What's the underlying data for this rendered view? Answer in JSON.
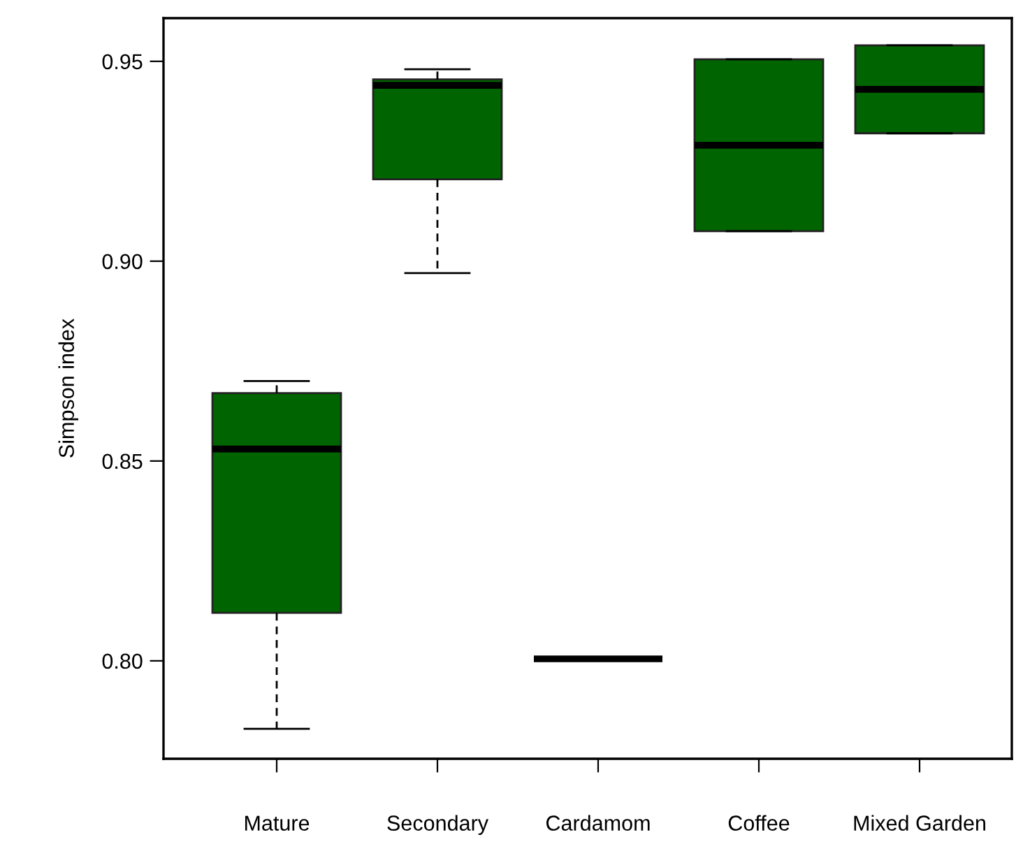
{
  "chart_data": {
    "type": "box",
    "ylabel": "Simpson index",
    "categories": [
      "Mature",
      "Secondary",
      "Cardamom",
      "Coffee",
      "Mixed Garden"
    ],
    "color": "#006400",
    "boxes": [
      {
        "low": 0.783,
        "q1": 0.812,
        "median": 0.853,
        "q3": 0.867,
        "high": 0.87
      },
      {
        "low": 0.897,
        "q1": 0.9205,
        "median": 0.944,
        "q3": 0.9455,
        "high": 0.948
      },
      {
        "low": 0.8005,
        "q1": 0.8005,
        "median": 0.8005,
        "q3": 0.8005,
        "high": 0.8005
      },
      {
        "low": 0.9075,
        "q1": 0.9075,
        "median": 0.929,
        "q3": 0.9505,
        "high": 0.9505
      },
      {
        "low": 0.932,
        "q1": 0.932,
        "median": 0.943,
        "q3": 0.954,
        "high": 0.954
      }
    ],
    "ylim": [
      0.7755,
      0.9608
    ],
    "yticks": [
      {
        "value": 0.8,
        "label": "0.80"
      },
      {
        "value": 0.85,
        "label": "0.85"
      },
      {
        "value": 0.9,
        "label": "0.90"
      },
      {
        "value": 0.95,
        "label": "0.95"
      }
    ],
    "grid": false
  }
}
